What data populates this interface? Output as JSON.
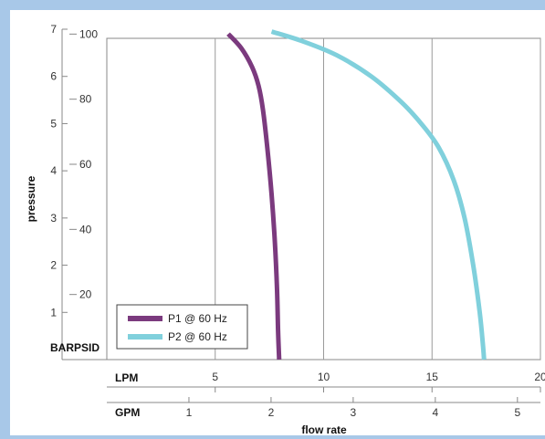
{
  "chart_data": {
    "type": "line",
    "x_axis": {
      "label": "flow rate",
      "units": [
        {
          "name": "LPM",
          "range": [
            0,
            20
          ],
          "ticks": [
            5,
            10,
            15,
            20
          ]
        },
        {
          "name": "GPM",
          "range": [
            0,
            5.28
          ],
          "ticks": [
            1,
            2,
            3,
            4,
            5
          ]
        }
      ]
    },
    "y_axis": {
      "label": "pressure",
      "units": [
        {
          "name": "BAR",
          "range": [
            0,
            7
          ],
          "ticks": [
            1,
            2,
            3,
            4,
            5,
            6,
            7
          ]
        },
        {
          "name": "PSID",
          "range": [
            0,
            101.5
          ],
          "ticks": [
            20,
            40,
            60,
            80,
            100
          ]
        }
      ]
    },
    "grid": true,
    "legend_position": "bottom-left",
    "series": [
      {
        "name": "P1 @ 60 Hz",
        "color": "#7b3a7e",
        "x_unit": "LPM",
        "y_unit": "BAR",
        "points": [
          [
            5.6,
            6.9
          ],
          [
            6.2,
            6.6
          ],
          [
            6.7,
            6.2
          ],
          [
            7.0,
            5.8
          ],
          [
            7.2,
            5.3
          ],
          [
            7.4,
            4.5
          ],
          [
            7.6,
            3.5
          ],
          [
            7.75,
            2.5
          ],
          [
            7.85,
            1.5
          ],
          [
            7.9,
            0.6
          ],
          [
            7.95,
            0.0
          ]
        ]
      },
      {
        "name": "P2 @ 60 Hz",
        "color": "#80d0dc",
        "x_unit": "LPM",
        "y_unit": "BAR",
        "points": [
          [
            7.6,
            6.95
          ],
          [
            9.0,
            6.75
          ],
          [
            10.6,
            6.45
          ],
          [
            12.2,
            6.0
          ],
          [
            13.6,
            5.45
          ],
          [
            14.5,
            5.0
          ],
          [
            15.3,
            4.5
          ],
          [
            16.0,
            3.8
          ],
          [
            16.5,
            3.0
          ],
          [
            16.9,
            2.0
          ],
          [
            17.2,
            1.0
          ],
          [
            17.35,
            0.3
          ],
          [
            17.4,
            0.0
          ]
        ]
      }
    ]
  }
}
